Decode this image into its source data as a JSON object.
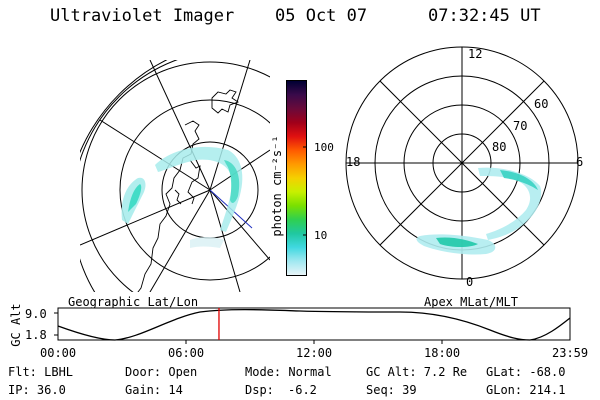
{
  "header": {
    "title": "Ultraviolet Imager",
    "date": "05 Oct 07",
    "time": "07:32:45 UT"
  },
  "colorbar": {
    "unit_label": "photon cm⁻²s⁻¹",
    "ticks": [
      "100",
      "10"
    ],
    "colors": [
      "#000033",
      "#3a0a4a",
      "#6a0a3a",
      "#a0001a",
      "#e01010",
      "#ff5a00",
      "#ff9a00",
      "#f5d000",
      "#c8f000",
      "#7ae000",
      "#2fd050",
      "#20c8a0",
      "#40d8e0",
      "#a0e8f0",
      "#e8f4f8"
    ]
  },
  "geo_map": {
    "label": "Geographic Lat/Lon"
  },
  "polar_map": {
    "label": "Apex MLat/MLT",
    "hour_labels": {
      "top": "12",
      "left": "18",
      "right": "6",
      "bottom": "0"
    },
    "lat_labels": [
      "60",
      "70",
      "80"
    ]
  },
  "timeline": {
    "ylabel": "GC Alt",
    "yticks": [
      "9.0",
      "1.8"
    ],
    "xticks": [
      "00:00",
      "06:00",
      "12:00",
      "18:00",
      "23:59"
    ],
    "marker_fraction": 0.3144,
    "marker_color": "#e00000"
  },
  "status": {
    "filter": "Flt: LBHL",
    "door": "Door: Open",
    "mode": "Mode: Normal",
    "gc_alt": "GC Alt: 7.2 Re",
    "glat": "GLat: -68.0",
    "ip": "IP: 36.0",
    "gain": "Gain: 14",
    "dsp_label": "Dsp:",
    "dsp_value": "-6.2",
    "seq": "Seq: 39",
    "glon": "GLon: 214.1"
  }
}
